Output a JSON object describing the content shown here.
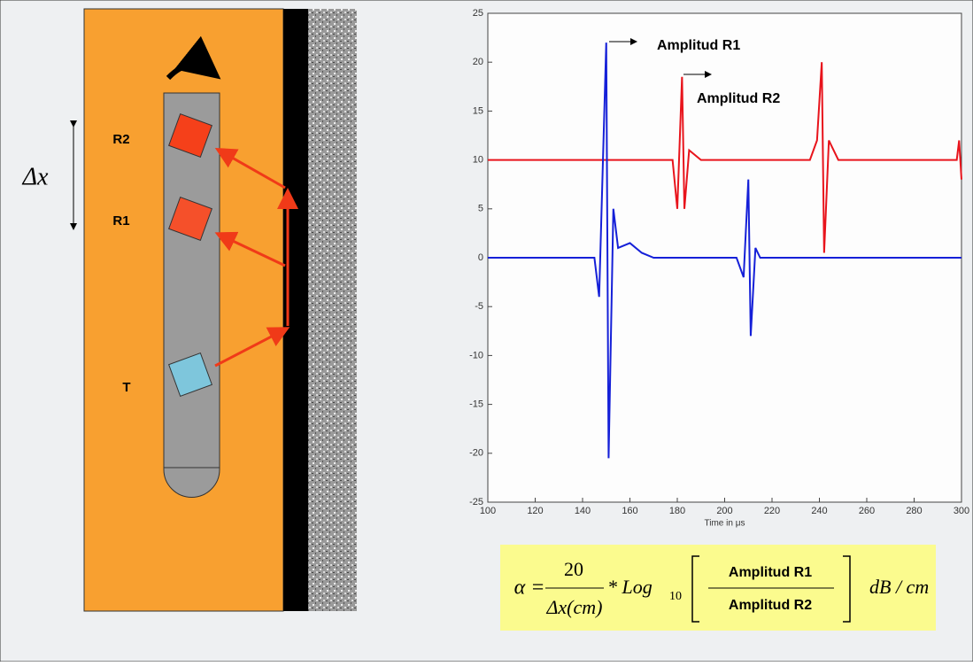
{
  "diagram": {
    "labels": {
      "r2": "R2",
      "r1": "R1",
      "t": "T",
      "dx": "Δx"
    }
  },
  "chart_data": {
    "type": "line",
    "x_label": "Time in μs",
    "annotations": [
      "Amplitud R1",
      "Amplitud R2"
    ],
    "xlim": [
      100,
      300
    ],
    "xticks": [
      100,
      120,
      140,
      160,
      180,
      200,
      220,
      240,
      260,
      280,
      300
    ],
    "ylim": [
      -25,
      25
    ],
    "yticks": [
      -25,
      -20,
      -15,
      -10,
      -5,
      0,
      5,
      10,
      15,
      20,
      25
    ],
    "series": [
      {
        "name": "R2",
        "color": "#e8141c",
        "x": [
          100,
          178,
          180,
          182,
          183,
          185,
          190,
          236,
          239,
          241,
          242,
          244,
          248,
          298,
          299,
          300
        ],
        "values": [
          10,
          10,
          5,
          18.5,
          5,
          11,
          10,
          10,
          12,
          20,
          0.5,
          12,
          10,
          10,
          12,
          8
        ]
      },
      {
        "name": "R1",
        "color": "#1520d8",
        "x": [
          100,
          145,
          147,
          150,
          151,
          153,
          155,
          160,
          165,
          170,
          205,
          208,
          210,
          211,
          213,
          215,
          300
        ],
        "values": [
          0,
          0,
          -4,
          22,
          -20.5,
          5,
          1,
          1.5,
          0.5,
          0,
          0,
          -2,
          8,
          -8,
          1,
          0,
          0
        ]
      }
    ]
  },
  "formula": {
    "lhs": "α =",
    "num": "20",
    "den": "Δx(cm)",
    "op": "* Log",
    "sub": "10",
    "num2": "Amplitud R1",
    "den2": "Amplitud R2",
    "unit": "dB / cm"
  }
}
